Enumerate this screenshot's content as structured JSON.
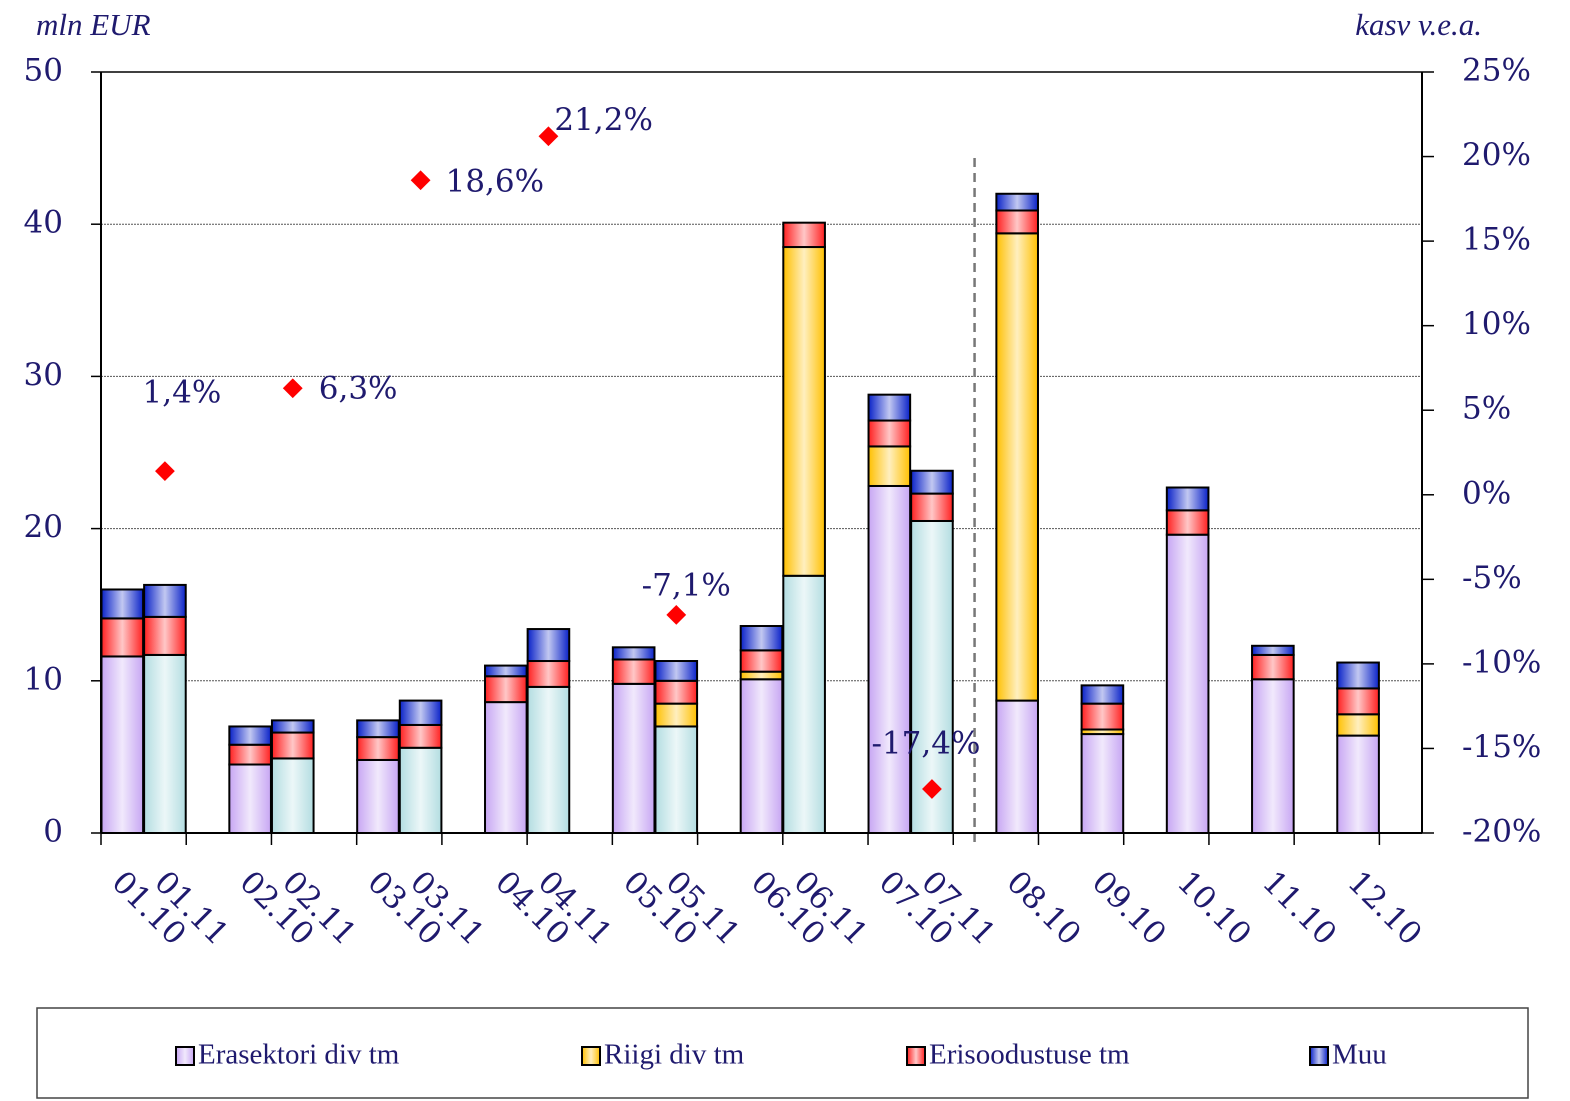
{
  "chart_data": {
    "type": "bar",
    "stacked": true,
    "y_axis_title": "mln EUR",
    "y2_axis_title": "kasv  v.e.a.",
    "categories": [
      "01.10",
      "01.11",
      "02.10",
      "02.11",
      "03.10",
      "03.11",
      "04.10",
      "04.11",
      "05.10",
      "05.11",
      "06.10",
      "06.11",
      "07.10",
      "07.11",
      "08.10",
      "09.10",
      "10.10",
      "11.10",
      "12.10"
    ],
    "ylim": [
      0,
      50
    ],
    "yticks": [
      0,
      10,
      20,
      30,
      40,
      50
    ],
    "y2lim": [
      -20,
      25
    ],
    "y2ticks": [
      {
        "value": -20,
        "label": "-20%"
      },
      {
        "value": -15,
        "label": "-15%"
      },
      {
        "value": -10,
        "label": "-10%"
      },
      {
        "value": -5,
        "label": "-5%"
      },
      {
        "value": 0,
        "label": "0%"
      },
      {
        "value": 5,
        "label": "5%"
      },
      {
        "value": 10,
        "label": "10%"
      },
      {
        "value": 15,
        "label": "15%"
      },
      {
        "value": 20,
        "label": "20%"
      },
      {
        "value": 25,
        "label": "25%"
      }
    ],
    "grid": true,
    "legend_position": "bottom",
    "series": [
      {
        "name": "Erasektori div tm",
        "color": "#c7a6f3",
        "colors": [
          "#c7a6f3",
          "#b3dde1",
          "#c7a6f3",
          "#b3dde1",
          "#c7a6f3",
          "#b3dde1",
          "#c7a6f3",
          "#b3dde1",
          "#c7a6f3",
          "#b3dde1",
          "#c7a6f3",
          "#b3dde1",
          "#c7a6f3",
          "#b3dde1",
          "#c7a6f3",
          "#c7a6f3",
          "#c7a6f3",
          "#c7a6f3",
          "#c7a6f3"
        ],
        "values": [
          11.6,
          11.7,
          4.5,
          4.9,
          4.8,
          5.6,
          8.6,
          9.6,
          9.8,
          7.0,
          10.1,
          16.9,
          22.8,
          20.5,
          8.7,
          6.5,
          19.6,
          10.1,
          6.4
        ]
      },
      {
        "name": "Riigi div tm",
        "color": "#ffc000",
        "values": [
          0,
          0,
          0,
          0,
          0,
          0,
          0,
          0,
          0,
          1.5,
          0.5,
          21.6,
          2.6,
          0,
          30.7,
          0.3,
          0,
          0,
          1.4
        ]
      },
      {
        "name": "Erisoodustuse tm",
        "color": "#ff2020",
        "values": [
          2.5,
          2.5,
          1.3,
          1.7,
          1.5,
          1.5,
          1.7,
          1.7,
          1.6,
          1.5,
          1.4,
          1.6,
          1.7,
          1.8,
          1.5,
          1.7,
          1.6,
          1.6,
          1.7
        ]
      },
      {
        "name": "Muu",
        "color": "#0a22c8",
        "values": [
          1.9,
          2.1,
          1.2,
          0.8,
          1.1,
          1.6,
          0.7,
          2.1,
          0.8,
          1.3,
          1.6,
          0,
          1.7,
          1.5,
          1.1,
          1.2,
          1.5,
          0.6,
          1.7
        ]
      }
    ],
    "growth": {
      "type": "scatter",
      "axis": "y2",
      "color": "#ff0000",
      "values": [
        null,
        1.4,
        null,
        6.3,
        null,
        18.6,
        null,
        21.2,
        null,
        -7.1,
        null,
        null,
        null,
        -17.4,
        null,
        null,
        null,
        null,
        null
      ],
      "value_labels": [
        null,
        "1,4%",
        null,
        "6,3%",
        null,
        "18,6%",
        null,
        "21,2%",
        null,
        "-7,1%",
        null,
        null,
        null,
        "-17,4%",
        null,
        null,
        null,
        null,
        null
      ]
    }
  }
}
